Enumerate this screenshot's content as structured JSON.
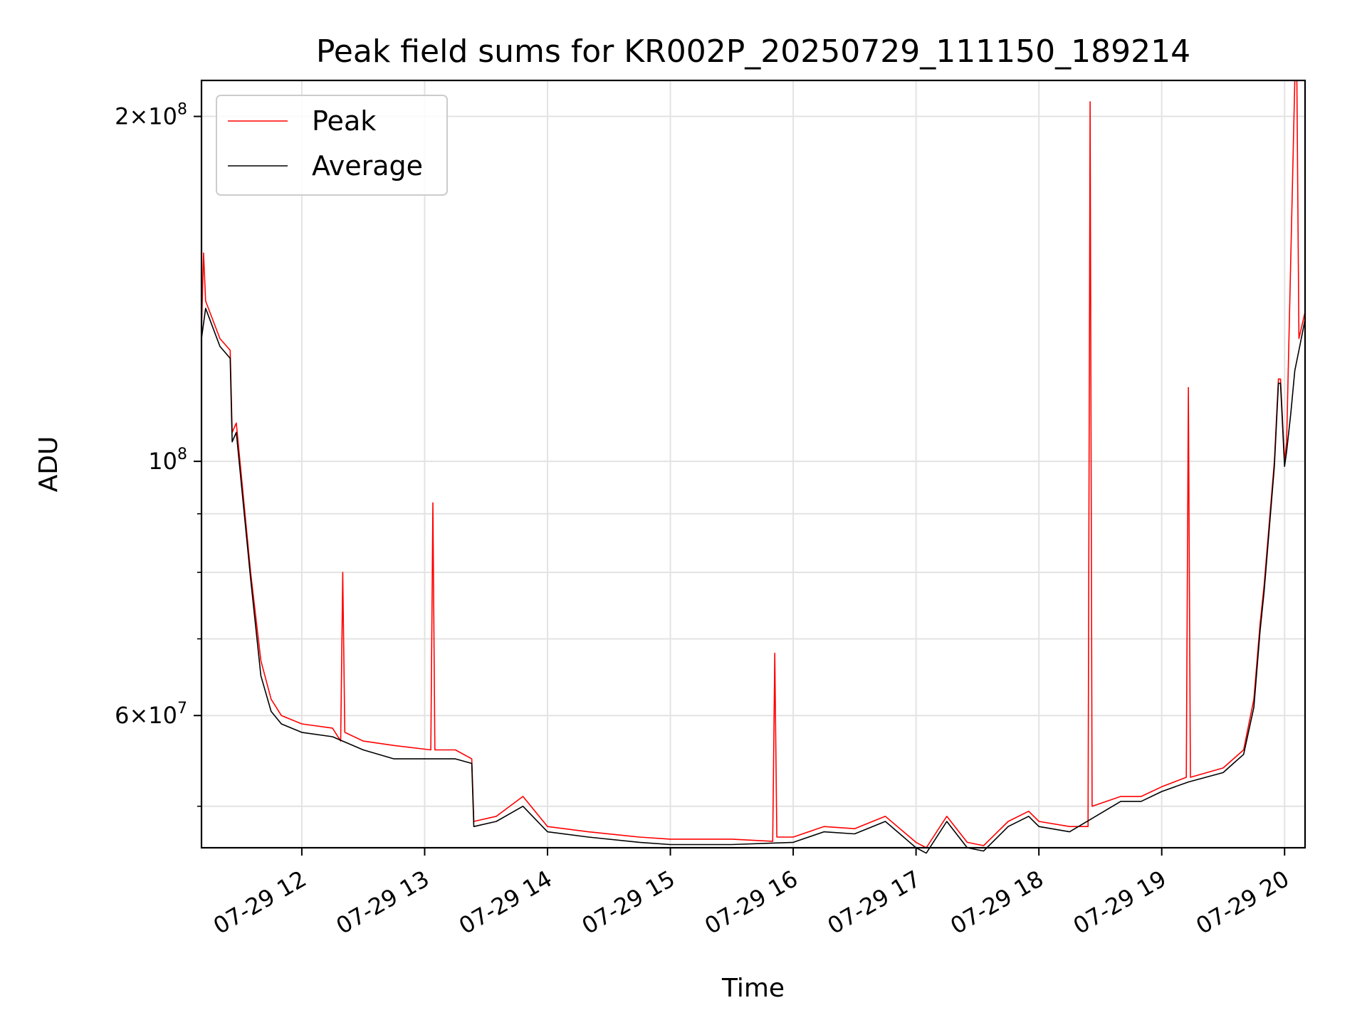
{
  "chart_data": {
    "type": "line",
    "title": "Peak field sums for KR002P_20250729_111150_189214",
    "xlabel": "Time",
    "ylabel": "ADU",
    "yscale": "log",
    "grid": true,
    "legend_position": "top-left",
    "xlim": [
      "2025-07-29 11:11",
      "2025-07-29 20:10"
    ],
    "ylim": [
      46000000,
      215000000
    ],
    "x_ticks": [
      {
        "value": "2025-07-29 12:00",
        "label": "07-29 12"
      },
      {
        "value": "2025-07-29 13:00",
        "label": "07-29 13"
      },
      {
        "value": "2025-07-29 14:00",
        "label": "07-29 14"
      },
      {
        "value": "2025-07-29 15:00",
        "label": "07-29 15"
      },
      {
        "value": "2025-07-29 16:00",
        "label": "07-29 16"
      },
      {
        "value": "2025-07-29 17:00",
        "label": "07-29 17"
      },
      {
        "value": "2025-07-29 18:00",
        "label": "07-29 18"
      },
      {
        "value": "2025-07-29 19:00",
        "label": "07-29 19"
      },
      {
        "value": "2025-07-29 20:00",
        "label": "07-29 20"
      }
    ],
    "y_major_ticks": [
      {
        "value": 200000000,
        "base": "2×10",
        "exp": "8"
      },
      {
        "value": 100000000,
        "base": "10",
        "exp": "8"
      },
      {
        "value": 60000000,
        "base": "6×10",
        "exp": "7"
      }
    ],
    "y_minor_ticks": [
      50000000,
      70000000,
      80000000,
      90000000,
      300000000
    ],
    "series": [
      {
        "name": "Peak",
        "color": "#ff0000",
        "x": [
          "2025-07-29 11:11",
          "2025-07-29 11:12",
          "2025-07-29 11:13",
          "2025-07-29 11:20",
          "2025-07-29 11:25",
          "2025-07-29 11:26",
          "2025-07-29 11:28",
          "2025-07-29 11:35",
          "2025-07-29 11:40",
          "2025-07-29 11:45",
          "2025-07-29 11:50",
          "2025-07-29 12:00",
          "2025-07-29 12:15",
          "2025-07-29 12:19",
          "2025-07-29 12:20",
          "2025-07-29 12:21",
          "2025-07-29 12:30",
          "2025-07-29 12:45",
          "2025-07-29 13:03",
          "2025-07-29 13:04",
          "2025-07-29 13:05",
          "2025-07-29 13:15",
          "2025-07-29 13:23",
          "2025-07-29 13:24",
          "2025-07-29 13:35",
          "2025-07-29 13:48",
          "2025-07-29 14:00",
          "2025-07-29 14:20",
          "2025-07-29 14:45",
          "2025-07-29 15:00",
          "2025-07-29 15:30",
          "2025-07-29 15:50",
          "2025-07-29 15:51",
          "2025-07-29 15:52",
          "2025-07-29 16:00",
          "2025-07-29 16:15",
          "2025-07-29 16:30",
          "2025-07-29 16:45",
          "2025-07-29 17:00",
          "2025-07-29 17:05",
          "2025-07-29 17:15",
          "2025-07-29 17:25",
          "2025-07-29 17:33",
          "2025-07-29 17:45",
          "2025-07-29 17:55",
          "2025-07-29 18:00",
          "2025-07-29 18:15",
          "2025-07-29 18:24",
          "2025-07-29 18:25",
          "2025-07-29 18:26",
          "2025-07-29 18:40",
          "2025-07-29 18:50",
          "2025-07-29 19:00",
          "2025-07-29 19:12",
          "2025-07-29 19:13",
          "2025-07-29 19:14",
          "2025-07-29 19:30",
          "2025-07-29 19:35",
          "2025-07-29 19:40",
          "2025-07-29 19:45",
          "2025-07-29 19:48",
          "2025-07-29 19:50",
          "2025-07-29 19:55",
          "2025-07-29 19:57",
          "2025-07-29 19:58",
          "2025-07-29 20:00",
          "2025-07-29 20:01",
          "2025-07-29 20:05",
          "2025-07-29 20:06",
          "2025-07-29 20:07",
          "2025-07-29 20:10"
        ],
        "values": [
          130000000,
          152000000,
          138000000,
          128000000,
          125000000,
          106000000,
          108000000,
          80000000,
          67000000,
          62000000,
          60000000,
          59000000,
          58500000,
          57000000,
          80000000,
          58000000,
          57000000,
          56500000,
          56000000,
          92000000,
          56000000,
          56000000,
          55000000,
          48500000,
          49000000,
          51000000,
          48000000,
          47500000,
          47000000,
          46800000,
          46800000,
          46600000,
          68000000,
          47000000,
          47000000,
          48000000,
          47800000,
          49000000,
          46500000,
          46000000,
          49000000,
          46500000,
          46200000,
          48500000,
          49500000,
          48500000,
          48000000,
          48000000,
          206000000,
          50000000,
          51000000,
          51000000,
          52000000,
          53000000,
          116000000,
          53000000,
          54000000,
          55000000,
          56000000,
          62000000,
          72000000,
          78000000,
          100000000,
          118000000,
          118000000,
          100000000,
          104000000,
          215000000,
          215000000,
          128000000,
          135000000
        ]
      },
      {
        "name": "Average",
        "color": "#000000",
        "x": [
          "2025-07-29 11:11",
          "2025-07-29 11:13",
          "2025-07-29 11:20",
          "2025-07-29 11:25",
          "2025-07-29 11:26",
          "2025-07-29 11:28",
          "2025-07-29 11:35",
          "2025-07-29 11:40",
          "2025-07-29 11:45",
          "2025-07-29 11:50",
          "2025-07-29 12:00",
          "2025-07-29 12:15",
          "2025-07-29 12:30",
          "2025-07-29 12:45",
          "2025-07-29 13:05",
          "2025-07-29 13:15",
          "2025-07-29 13:23",
          "2025-07-29 13:24",
          "2025-07-29 13:35",
          "2025-07-29 13:48",
          "2025-07-29 14:00",
          "2025-07-29 14:20",
          "2025-07-29 14:45",
          "2025-07-29 15:00",
          "2025-07-29 15:30",
          "2025-07-29 16:00",
          "2025-07-29 16:15",
          "2025-07-29 16:30",
          "2025-07-29 16:45",
          "2025-07-29 17:00",
          "2025-07-29 17:05",
          "2025-07-29 17:15",
          "2025-07-29 17:25",
          "2025-07-29 17:33",
          "2025-07-29 17:45",
          "2025-07-29 17:55",
          "2025-07-29 18:00",
          "2025-07-29 18:15",
          "2025-07-29 18:40",
          "2025-07-29 18:50",
          "2025-07-29 19:00",
          "2025-07-29 19:13",
          "2025-07-29 19:30",
          "2025-07-29 19:35",
          "2025-07-29 19:40",
          "2025-07-29 19:45",
          "2025-07-29 19:48",
          "2025-07-29 19:50",
          "2025-07-29 19:55",
          "2025-07-29 19:57",
          "2025-07-29 19:58",
          "2025-07-29 20:00",
          "2025-07-29 20:01",
          "2025-07-29 20:03",
          "2025-07-29 20:05",
          "2025-07-29 20:07",
          "2025-07-29 20:10"
        ],
        "values": [
          128000000,
          136000000,
          126000000,
          123000000,
          104000000,
          106000000,
          79000000,
          65000000,
          60500000,
          59000000,
          58000000,
          57500000,
          56000000,
          55000000,
          55000000,
          55000000,
          54500000,
          48000000,
          48500000,
          50000000,
          47500000,
          47000000,
          46500000,
          46300000,
          46300000,
          46500000,
          47500000,
          47300000,
          48500000,
          46000000,
          45500000,
          48500000,
          46000000,
          45700000,
          48000000,
          49000000,
          48000000,
          47500000,
          50500000,
          50500000,
          51500000,
          52500000,
          53500000,
          54500000,
          55500000,
          61000000,
          71000000,
          77000000,
          99000000,
          117000000,
          117000000,
          99000000,
          102000000,
          110000000,
          120000000,
          125000000,
          133000000
        ]
      }
    ]
  }
}
